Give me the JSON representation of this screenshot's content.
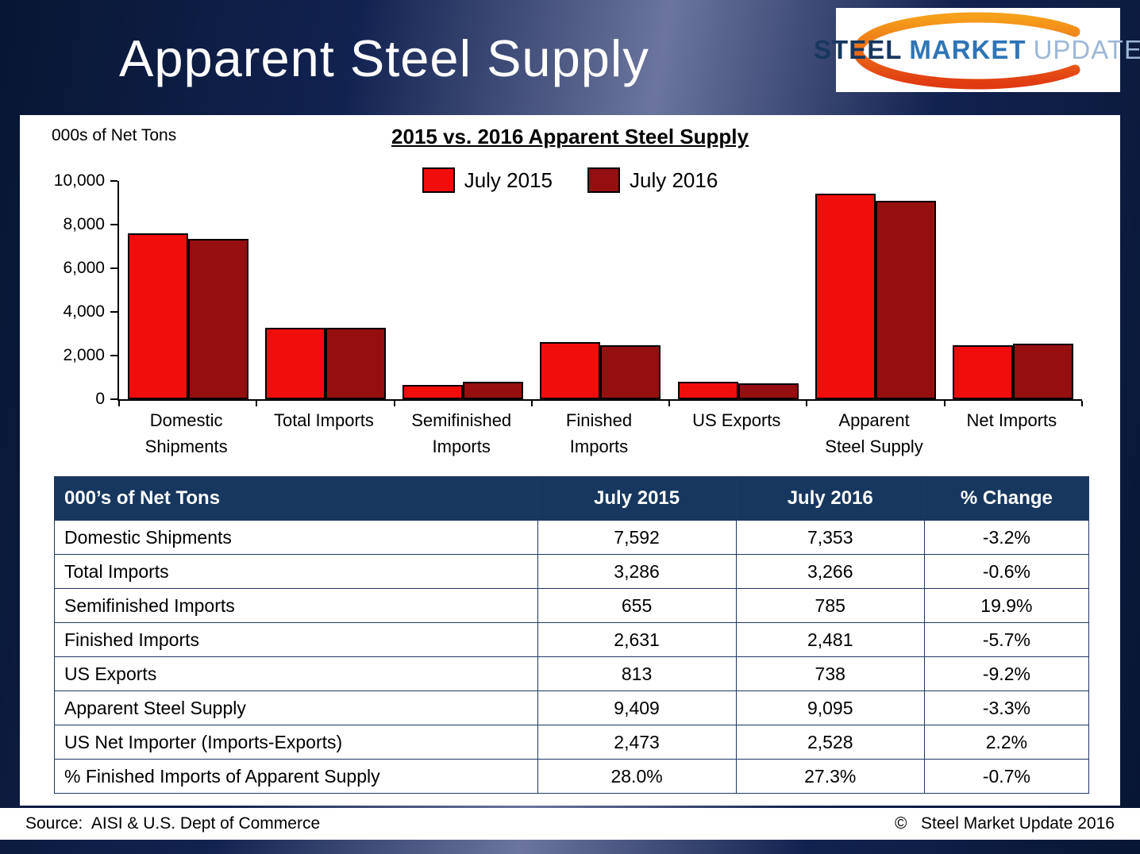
{
  "page": {
    "title": "Apparent Steel Supply",
    "logo": {
      "steel": "STEEL",
      "market": "MARKET",
      "update": "UPDATE"
    },
    "footer": {
      "source": "Source:  AISI & U.S. Dept of Commerce",
      "copyright": "©   Steel Market Update 2016"
    }
  },
  "chart": {
    "units_label": "000s of Net Tons",
    "title": "2015 vs. 2016 Apparent Steel Supply"
  },
  "chart_data": {
    "type": "bar",
    "title": "2015 vs. 2016 Apparent Steel Supply",
    "categories": [
      "Domestic Shipments",
      "Total Imports",
      "Semifinished Imports",
      "Finished Imports",
      "US Exports",
      "Apparent Steel Supply",
      "Net Imports"
    ],
    "categories_display": [
      "Domestic\nShipments",
      "Total Imports",
      "Semifinished\nImports",
      "Finished\nImports",
      "US Exports",
      "Apparent\nSteel Supply",
      "Net Imports"
    ],
    "series": [
      {
        "name": "July 2015",
        "color": "#f20d0d",
        "values": [
          7592,
          3286,
          655,
          2631,
          813,
          9409,
          2473
        ]
      },
      {
        "name": "July 2016",
        "color": "#950f10",
        "values": [
          7353,
          3266,
          785,
          2481,
          738,
          9095,
          2528
        ]
      }
    ],
    "ylabel": "000s of Net Tons",
    "ylim": [
      0,
      10000
    ],
    "yticks": [
      0,
      2000,
      4000,
      6000,
      8000,
      10000
    ],
    "grid": false,
    "legend_position": "top-center"
  },
  "table": {
    "headers": [
      "000’s of Net Tons",
      "July 2015",
      "July 2016",
      "% Change"
    ],
    "rows": [
      [
        "Domestic Shipments",
        "7,592",
        "7,353",
        "-3.2%"
      ],
      [
        "Total Imports",
        "3,286",
        "3,266",
        "-0.6%"
      ],
      [
        "Semifinished Imports",
        "655",
        "785",
        "19.9%"
      ],
      [
        "Finished Imports",
        "2,631",
        "2,481",
        "-5.7%"
      ],
      [
        "US Exports",
        "813",
        "738",
        "-9.2%"
      ],
      [
        "Apparent Steel Supply",
        "9,409",
        "9,095",
        "-3.3%"
      ],
      [
        "US Net Importer (Imports-Exports)",
        "2,473",
        "2,528",
        "2.2%"
      ],
      [
        "% Finished Imports of Apparent Supply",
        "28.0%",
        "27.3%",
        "-0.7%"
      ]
    ]
  },
  "colors": {
    "accent_navy": "#17375e",
    "july_2015_red": "#f20d0d",
    "july_2016_dark_red": "#950f10",
    "logo_orange": "#e87722"
  }
}
